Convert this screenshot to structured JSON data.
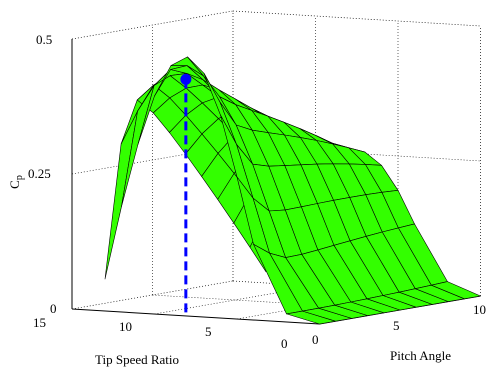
{
  "chart_data": {
    "type": "surface",
    "xlabel": "Tip Speed Ratio",
    "ylabel": "Pitch Angle",
    "zlabel": "C",
    "zlabel_sub": "p",
    "x_ticks": [
      "15",
      "10",
      "5",
      "0"
    ],
    "y_ticks": [
      "0",
      "5",
      "10"
    ],
    "z_ticks": [
      "0",
      "0.25",
      "0.5"
    ],
    "xlim": [
      0,
      15
    ],
    "ylim": [
      0,
      10
    ],
    "zlim": [
      0,
      0.5
    ],
    "grid": true,
    "surface_color": "#33ff00",
    "mesh_color": "#000000",
    "marker_color": "#0000ff",
    "max_point": {
      "tip_speed_ratio": 8.1,
      "pitch_angle": 0,
      "cp": 0.438
    },
    "lambda_samples": [
      0,
      2,
      4,
      5,
      6,
      7,
      8,
      9,
      10,
      11,
      12,
      13
    ],
    "pitch_samples": [
      0,
      1,
      2,
      3,
      4,
      5,
      6,
      7,
      8,
      9,
      10
    ]
  }
}
